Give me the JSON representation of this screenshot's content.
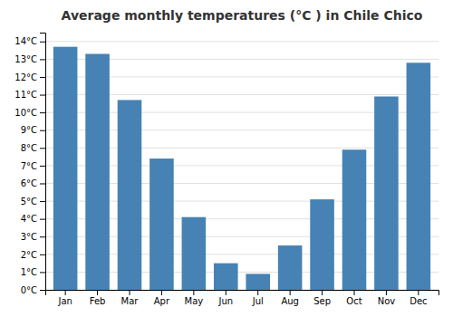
{
  "chart_data": {
    "type": "bar",
    "title": "Average monthly temperatures (°C ) in Chile Chico",
    "categories": [
      "Jan",
      "Feb",
      "Mar",
      "Apr",
      "May",
      "Jun",
      "Jul",
      "Aug",
      "Sep",
      "Oct",
      "Nov",
      "Dec"
    ],
    "values": [
      13.7,
      13.3,
      10.7,
      7.4,
      4.1,
      1.5,
      0.9,
      2.5,
      5.1,
      7.9,
      10.9,
      12.8
    ],
    "ylim": [
      0,
      14.5
    ],
    "yticks": [
      {
        "value": 0,
        "label": "0°C"
      },
      {
        "value": 1,
        "label": "1°C"
      },
      {
        "value": 2,
        "label": "2°C"
      },
      {
        "value": 3,
        "label": "3°C"
      },
      {
        "value": 4,
        "label": "4°C"
      },
      {
        "value": 5,
        "label": "5°C"
      },
      {
        "value": 6,
        "label": "6°C"
      },
      {
        "value": 7,
        "label": "7°C"
      },
      {
        "value": 8,
        "label": "8°C"
      },
      {
        "value": 9,
        "label": "9°C"
      },
      {
        "value": 10,
        "label": "10°C"
      },
      {
        "value": 11,
        "label": "11°C"
      },
      {
        "value": 12,
        "label": "12°C"
      },
      {
        "value": 13,
        "label": "13°C"
      },
      {
        "value": 14,
        "label": "14°C"
      }
    ],
    "grid": true
  }
}
